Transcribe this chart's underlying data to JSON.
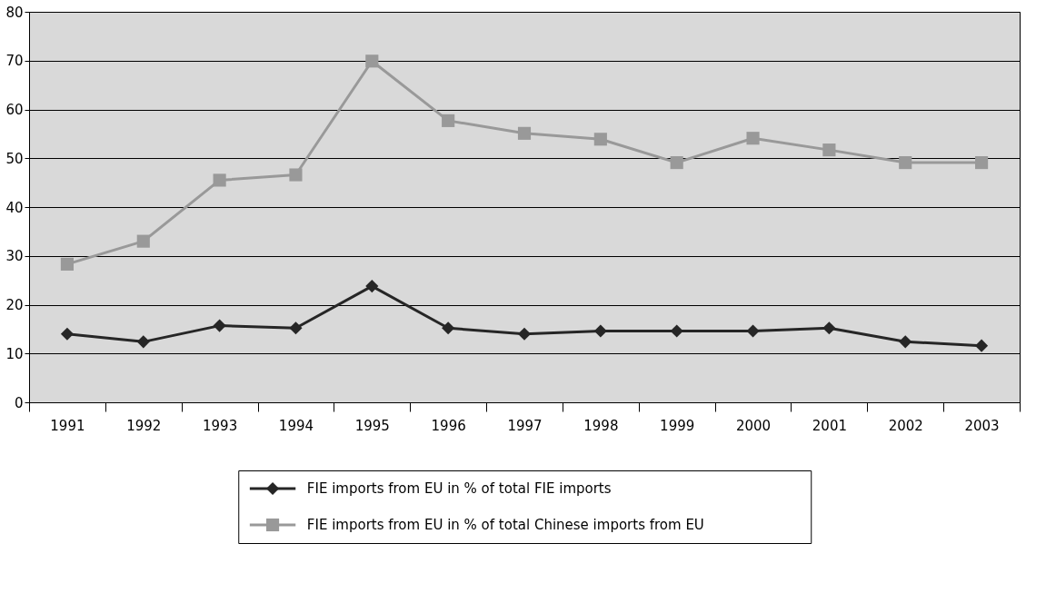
{
  "chart_data": {
    "type": "line",
    "categories": [
      "1991",
      "1992",
      "1993",
      "1994",
      "1995",
      "1996",
      "1997",
      "1998",
      "1999",
      "2000",
      "2001",
      "2002",
      "2003"
    ],
    "series": [
      {
        "name": "FIE imports from EU in % of total FIE imports",
        "color": "#262626",
        "marker": "diamond",
        "values": [
          14.0,
          12.4,
          15.7,
          15.2,
          23.8,
          15.2,
          14.0,
          14.6,
          14.6,
          14.6,
          15.2,
          12.4,
          11.6
        ]
      },
      {
        "name": "FIE imports from EU in % of total Chinese imports from EU",
        "color": "#999999",
        "marker": "square",
        "values": [
          28.3,
          33.0,
          45.5,
          46.6,
          69.9,
          57.7,
          55.1,
          53.9,
          49.1,
          54.1,
          51.7,
          49.1,
          49.1
        ]
      }
    ],
    "ylim": [
      0,
      80
    ],
    "yticks": [
      0,
      10,
      20,
      30,
      40,
      50,
      60,
      70,
      80
    ],
    "grid": "y",
    "legend": "bottom",
    "line_style": "solid"
  }
}
